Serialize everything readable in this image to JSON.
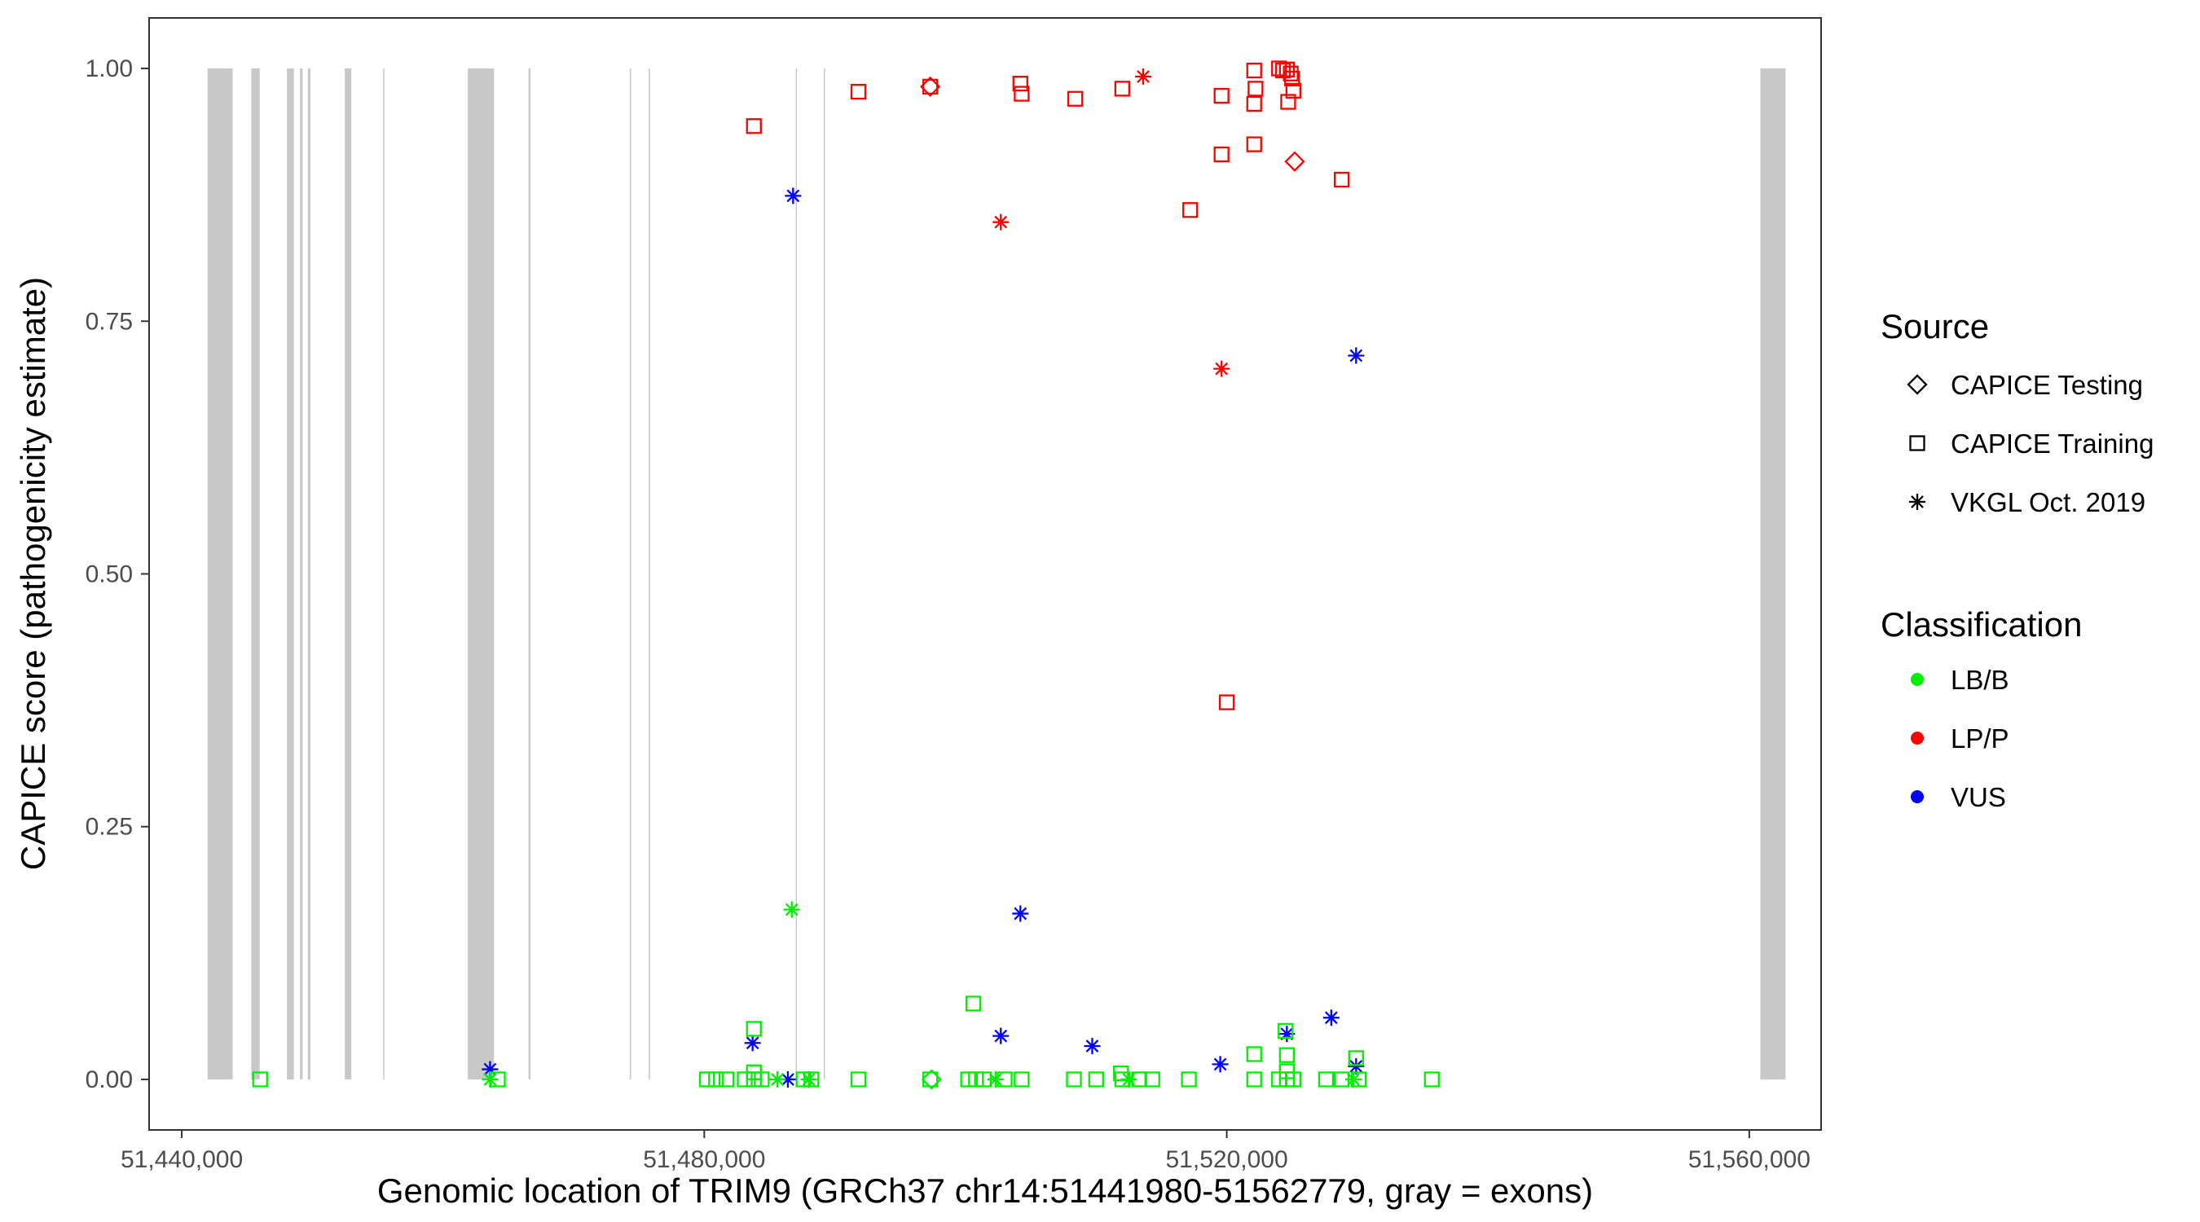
{
  "chart_data": {
    "type": "scatter",
    "xlabel": "Genomic location of TRIM9 (GRCh37 chr14:51441980-51562779, gray = exons)",
    "ylabel": "CAPICE score (pathogenicity estimate)",
    "xlim": [
      51437500,
      51565500
    ],
    "ylim": [
      -0.05,
      1.05
    ],
    "x_ticks": [
      51440000,
      51480000,
      51520000,
      51560000
    ],
    "x_tick_labels": [
      "51,440,000",
      "51,480,000",
      "51,520,000",
      "51,560,000"
    ],
    "y_ticks": [
      0,
      0.25,
      0.5,
      0.75,
      1.0
    ],
    "y_tick_labels": [
      "0.00",
      "0.25",
      "0.50",
      "0.75",
      "1.00"
    ],
    "grid": false,
    "background": "#ffffff",
    "exon_color": "#c8c8c8",
    "exons": [
      [
        51441980,
        51443900
      ],
      [
        51445320,
        51445970
      ],
      [
        51448050,
        51448580
      ],
      [
        51449050,
        51449250
      ],
      [
        51449650,
        51449850
      ],
      [
        51452480,
        51452980
      ],
      [
        51455420,
        51455500
      ],
      [
        51461900,
        51463900
      ],
      [
        51466550,
        51466700
      ],
      [
        51474300,
        51474400
      ],
      [
        51475750,
        51475850
      ],
      [
        51487000,
        51487070
      ],
      [
        51489150,
        51489200
      ],
      [
        51560850,
        51562779
      ]
    ],
    "legend": {
      "position": "right",
      "source_title": "Source",
      "source_items": [
        {
          "label": "CAPICE Testing",
          "shape": "diamond"
        },
        {
          "label": "CAPICE Training",
          "shape": "square"
        },
        {
          "label": "VKGL Oct. 2019",
          "shape": "asterisk"
        }
      ],
      "class_title": "Classification",
      "class_items": [
        {
          "label": "LB/B",
          "color": "#00ee00"
        },
        {
          "label": "LP/P",
          "color": "#ff0000"
        },
        {
          "label": "VUS",
          "color": "#0000ff"
        }
      ]
    },
    "colors": {
      "LB/B": "#00ee00",
      "LP/P": "#ff0000",
      "VUS": "#0000ff"
    },
    "points": [
      {
        "x": 51483800,
        "y": 0.943,
        "source": "CAPICE Training",
        "class": "LP/P"
      },
      {
        "x": 51491800,
        "y": 0.977,
        "source": "CAPICE Training",
        "class": "LP/P"
      },
      {
        "x": 51497300,
        "y": 0.982,
        "source": "CAPICE Training",
        "class": "LP/P"
      },
      {
        "x": 51497300,
        "y": 0.982,
        "source": "CAPICE Testing",
        "class": "LP/P"
      },
      {
        "x": 51504200,
        "y": 0.985,
        "source": "CAPICE Training",
        "class": "LP/P"
      },
      {
        "x": 51504300,
        "y": 0.975,
        "source": "CAPICE Training",
        "class": "LP/P"
      },
      {
        "x": 51508400,
        "y": 0.97,
        "source": "CAPICE Training",
        "class": "LP/P"
      },
      {
        "x": 51512000,
        "y": 0.98,
        "source": "CAPICE Training",
        "class": "LP/P"
      },
      {
        "x": 51513600,
        "y": 0.992,
        "source": "VKGL Oct. 2019",
        "class": "LP/P"
      },
      {
        "x": 51519600,
        "y": 0.973,
        "source": "CAPICE Training",
        "class": "LP/P"
      },
      {
        "x": 51522100,
        "y": 0.998,
        "source": "CAPICE Training",
        "class": "LP/P"
      },
      {
        "x": 51522200,
        "y": 0.98,
        "source": "CAPICE Training",
        "class": "LP/P"
      },
      {
        "x": 51522100,
        "y": 0.965,
        "source": "CAPICE Training",
        "class": "LP/P"
      },
      {
        "x": 51524000,
        "y": 1.0,
        "source": "CAPICE Training",
        "class": "LP/P"
      },
      {
        "x": 51524300,
        "y": 0.998,
        "source": "CAPICE Training",
        "class": "LP/P"
      },
      {
        "x": 51524600,
        "y": 0.999,
        "source": "CAPICE Training",
        "class": "LP/P"
      },
      {
        "x": 51524900,
        "y": 0.995,
        "source": "CAPICE Training",
        "class": "LP/P"
      },
      {
        "x": 51525000,
        "y": 0.99,
        "source": "CAPICE Training",
        "class": "LP/P"
      },
      {
        "x": 51525100,
        "y": 0.978,
        "source": "CAPICE Training",
        "class": "LP/P"
      },
      {
        "x": 51524700,
        "y": 0.967,
        "source": "CAPICE Training",
        "class": "LP/P"
      },
      {
        "x": 51519600,
        "y": 0.915,
        "source": "CAPICE Training",
        "class": "LP/P"
      },
      {
        "x": 51522100,
        "y": 0.925,
        "source": "CAPICE Training",
        "class": "LP/P"
      },
      {
        "x": 51525200,
        "y": 0.908,
        "source": "CAPICE Testing",
        "class": "LP/P"
      },
      {
        "x": 51528800,
        "y": 0.89,
        "source": "CAPICE Training",
        "class": "LP/P"
      },
      {
        "x": 51517200,
        "y": 0.86,
        "source": "CAPICE Training",
        "class": "LP/P"
      },
      {
        "x": 51502700,
        "y": 0.848,
        "source": "VKGL Oct. 2019",
        "class": "LP/P"
      },
      {
        "x": 51519600,
        "y": 0.703,
        "source": "VKGL Oct. 2019",
        "class": "LP/P"
      },
      {
        "x": 51520000,
        "y": 0.373,
        "source": "CAPICE Training",
        "class": "LP/P"
      },
      {
        "x": 51486800,
        "y": 0.874,
        "source": "VKGL Oct. 2019",
        "class": "VUS"
      },
      {
        "x": 51529900,
        "y": 0.716,
        "source": "VKGL Oct. 2019",
        "class": "VUS"
      },
      {
        "x": 51504200,
        "y": 0.164,
        "source": "VKGL Oct. 2019",
        "class": "VUS"
      },
      {
        "x": 51502700,
        "y": 0.043,
        "source": "VKGL Oct. 2019",
        "class": "VUS"
      },
      {
        "x": 51483700,
        "y": 0.036,
        "source": "VKGL Oct. 2019",
        "class": "VUS"
      },
      {
        "x": 51509700,
        "y": 0.033,
        "source": "VKGL Oct. 2019",
        "class": "VUS"
      },
      {
        "x": 51524600,
        "y": 0.045,
        "source": "VKGL Oct. 2019",
        "class": "VUS"
      },
      {
        "x": 51528000,
        "y": 0.061,
        "source": "VKGL Oct. 2019",
        "class": "VUS"
      },
      {
        "x": 51519500,
        "y": 0.015,
        "source": "VKGL Oct. 2019",
        "class": "VUS"
      },
      {
        "x": 51529900,
        "y": 0.013,
        "source": "VKGL Oct. 2019",
        "class": "VUS"
      },
      {
        "x": 51463600,
        "y": 0.01,
        "source": "VKGL Oct. 2019",
        "class": "VUS"
      },
      {
        "x": 51486400,
        "y": 0.0,
        "source": "VKGL Oct. 2019",
        "class": "VUS"
      },
      {
        "x": 51486700,
        "y": 0.168,
        "source": "VKGL Oct. 2019",
        "class": "LB/B"
      },
      {
        "x": 51500600,
        "y": 0.075,
        "source": "CAPICE Training",
        "class": "LB/B"
      },
      {
        "x": 51483800,
        "y": 0.05,
        "source": "CAPICE Training",
        "class": "LB/B"
      },
      {
        "x": 51524500,
        "y": 0.048,
        "source": "CAPICE Training",
        "class": "LB/B"
      },
      {
        "x": 51522100,
        "y": 0.025,
        "source": "CAPICE Training",
        "class": "LB/B"
      },
      {
        "x": 51524600,
        "y": 0.024,
        "source": "CAPICE Training",
        "class": "LB/B"
      },
      {
        "x": 51529900,
        "y": 0.021,
        "source": "CAPICE Training",
        "class": "LB/B"
      },
      {
        "x": 51524600,
        "y": 0.008,
        "source": "CAPICE Training",
        "class": "LB/B"
      },
      {
        "x": 51483800,
        "y": 0.007,
        "source": "CAPICE Training",
        "class": "LB/B"
      },
      {
        "x": 51511900,
        "y": 0.006,
        "source": "CAPICE Training",
        "class": "LB/B"
      },
      {
        "x": 51446000,
        "y": 0.0,
        "source": "CAPICE Training",
        "class": "LB/B"
      },
      {
        "x": 51463600,
        "y": 0.0,
        "source": "VKGL Oct. 2019",
        "class": "LB/B"
      },
      {
        "x": 51464200,
        "y": 0.0,
        "source": "CAPICE Training",
        "class": "LB/B"
      },
      {
        "x": 51480200,
        "y": 0.0,
        "source": "CAPICE Training",
        "class": "LB/B"
      },
      {
        "x": 51480900,
        "y": 0.0,
        "source": "CAPICE Training",
        "class": "LB/B"
      },
      {
        "x": 51481700,
        "y": 0.0,
        "source": "CAPICE Training",
        "class": "LB/B"
      },
      {
        "x": 51483100,
        "y": 0.0,
        "source": "CAPICE Training",
        "class": "LB/B"
      },
      {
        "x": 51483800,
        "y": 0.0,
        "source": "CAPICE Training",
        "class": "LB/B"
      },
      {
        "x": 51484400,
        "y": 0.0,
        "source": "CAPICE Training",
        "class": "LB/B"
      },
      {
        "x": 51485600,
        "y": 0.0,
        "source": "VKGL Oct. 2019",
        "class": "LB/B"
      },
      {
        "x": 51487600,
        "y": 0.0,
        "source": "CAPICE Training",
        "class": "LB/B"
      },
      {
        "x": 51488000,
        "y": 0.0,
        "source": "VKGL Oct. 2019",
        "class": "LB/B"
      },
      {
        "x": 51488200,
        "y": 0.0,
        "source": "CAPICE Training",
        "class": "LB/B"
      },
      {
        "x": 51491800,
        "y": 0.0,
        "source": "CAPICE Training",
        "class": "LB/B"
      },
      {
        "x": 51497300,
        "y": 0.0,
        "source": "CAPICE Training",
        "class": "LB/B"
      },
      {
        "x": 51497400,
        "y": 0.0,
        "source": "CAPICE Testing",
        "class": "LB/B"
      },
      {
        "x": 51500200,
        "y": 0.0,
        "source": "CAPICE Training",
        "class": "LB/B"
      },
      {
        "x": 51500800,
        "y": 0.0,
        "source": "CAPICE Training",
        "class": "LB/B"
      },
      {
        "x": 51501400,
        "y": 0.0,
        "source": "CAPICE Training",
        "class": "LB/B"
      },
      {
        "x": 51502300,
        "y": 0.0,
        "source": "VKGL Oct. 2019",
        "class": "LB/B"
      },
      {
        "x": 51503000,
        "y": 0.0,
        "source": "CAPICE Training",
        "class": "LB/B"
      },
      {
        "x": 51504300,
        "y": 0.0,
        "source": "CAPICE Training",
        "class": "LB/B"
      },
      {
        "x": 51508300,
        "y": 0.0,
        "source": "CAPICE Training",
        "class": "LB/B"
      },
      {
        "x": 51510000,
        "y": 0.0,
        "source": "CAPICE Training",
        "class": "LB/B"
      },
      {
        "x": 51512000,
        "y": 0.0,
        "source": "CAPICE Training",
        "class": "LB/B"
      },
      {
        "x": 51512500,
        "y": 0.0,
        "source": "VKGL Oct. 2019",
        "class": "LB/B"
      },
      {
        "x": 51513300,
        "y": 0.0,
        "source": "CAPICE Training",
        "class": "LB/B"
      },
      {
        "x": 51514300,
        "y": 0.0,
        "source": "CAPICE Training",
        "class": "LB/B"
      },
      {
        "x": 51517100,
        "y": 0.0,
        "source": "CAPICE Training",
        "class": "LB/B"
      },
      {
        "x": 51522100,
        "y": 0.0,
        "source": "CAPICE Training",
        "class": "LB/B"
      },
      {
        "x": 51524000,
        "y": 0.0,
        "source": "CAPICE Training",
        "class": "LB/B"
      },
      {
        "x": 51524600,
        "y": 0.0,
        "source": "CAPICE Training",
        "class": "LB/B"
      },
      {
        "x": 51525100,
        "y": 0.0,
        "source": "CAPICE Training",
        "class": "LB/B"
      },
      {
        "x": 51527600,
        "y": 0.0,
        "source": "CAPICE Training",
        "class": "LB/B"
      },
      {
        "x": 51528800,
        "y": 0.0,
        "source": "CAPICE Training",
        "class": "LB/B"
      },
      {
        "x": 51529700,
        "y": 0.0,
        "source": "VKGL Oct. 2019",
        "class": "LB/B"
      },
      {
        "x": 51530100,
        "y": 0.0,
        "source": "CAPICE Training",
        "class": "LB/B"
      },
      {
        "x": 51535700,
        "y": 0.0,
        "source": "CAPICE Training",
        "class": "LB/B"
      }
    ]
  }
}
